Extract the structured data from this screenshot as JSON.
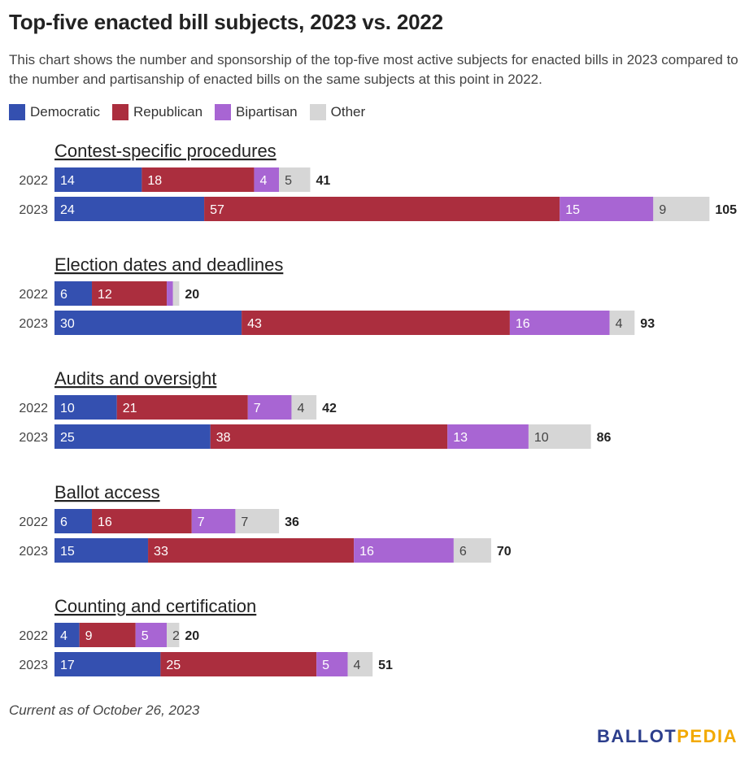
{
  "title": "Top-five enacted bill subjects, 2023 vs. 2022",
  "subtitle": "This chart shows the number and sponsorship of the top-five most active subjects for enacted bills in 2023 compared to the number and partisanship of enacted bills on the same subjects at this point in 2022.",
  "footnote": "Current as of October 26, 2023",
  "logo": {
    "part1": "BALLOT",
    "part2": "PEDIA",
    "color1": "#2c3e8c",
    "color2": "#f2a900"
  },
  "legend": [
    {
      "label": "Democratic",
      "color": "#3450b0"
    },
    {
      "label": "Republican",
      "color": "#ab2e3e"
    },
    {
      "label": "Bipartisan",
      "color": "#a865d3"
    },
    {
      "label": "Other",
      "color": "#d6d6d6"
    }
  ],
  "chart_data": {
    "type": "bar",
    "orientation": "horizontal",
    "stacked": true,
    "series_names": [
      "Democratic",
      "Republican",
      "Bipartisan",
      "Other"
    ],
    "groups": [
      {
        "subject": "Contest-specific procedures",
        "rows": [
          {
            "year": "2022",
            "values": [
              14,
              18,
              4,
              5
            ],
            "total": 41
          },
          {
            "year": "2023",
            "values": [
              24,
              57,
              15,
              9
            ],
            "total": 105
          }
        ]
      },
      {
        "subject": "Election dates and deadlines",
        "rows": [
          {
            "year": "2022",
            "values": [
              6,
              12,
              1,
              1
            ],
            "total": 20
          },
          {
            "year": "2023",
            "values": [
              30,
              43,
              16,
              4
            ],
            "total": 93
          }
        ]
      },
      {
        "subject": "Audits and oversight",
        "rows": [
          {
            "year": "2022",
            "values": [
              10,
              21,
              7,
              4
            ],
            "total": 42
          },
          {
            "year": "2023",
            "values": [
              25,
              38,
              13,
              10
            ],
            "total": 86
          }
        ]
      },
      {
        "subject": "Ballot access",
        "rows": [
          {
            "year": "2022",
            "values": [
              6,
              16,
              7,
              7
            ],
            "total": 36
          },
          {
            "year": "2023",
            "values": [
              15,
              33,
              16,
              6
            ],
            "total": 70
          }
        ]
      },
      {
        "subject": "Counting and certification",
        "rows": [
          {
            "year": "2022",
            "values": [
              4,
              9,
              5,
              2
            ],
            "total": 20
          },
          {
            "year": "2023",
            "values": [
              17,
              25,
              5,
              4
            ],
            "total": 51
          }
        ]
      }
    ]
  }
}
